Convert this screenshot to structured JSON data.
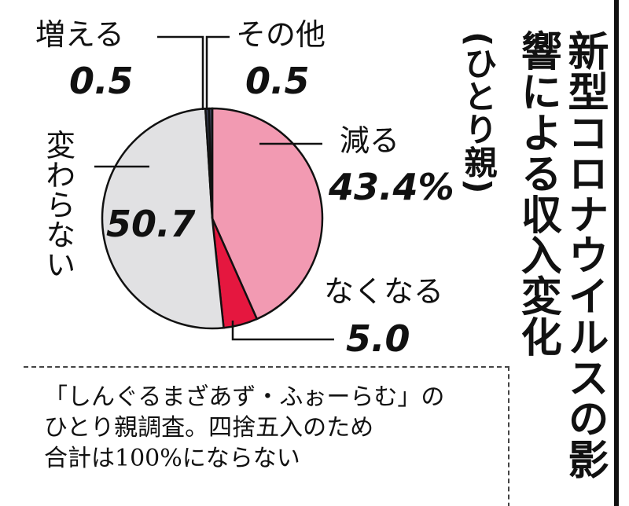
{
  "chart_data": {
    "type": "pie",
    "title": "新型コロナウイルスの影響による収入変化",
    "subtitle": "(ひとり親)",
    "categories": [
      "減る",
      "なくなる",
      "変わらない",
      "増える",
      "その他"
    ],
    "values": [
      43.4,
      5.0,
      50.7,
      0.5,
      0.5
    ],
    "value_labels": [
      "43.4%",
      "5.0",
      "50.7",
      "0.5",
      "0.5"
    ],
    "colors": [
      "#f29ab2",
      "#e5173f",
      "#e1e1e3",
      "#3a3f55",
      "#3a3f55"
    ],
    "note": [
      "「しんぐるまざあず・ふぉーらむ」の",
      "ひとり親調査。四捨五入のため",
      "合計は100%にならない"
    ]
  }
}
